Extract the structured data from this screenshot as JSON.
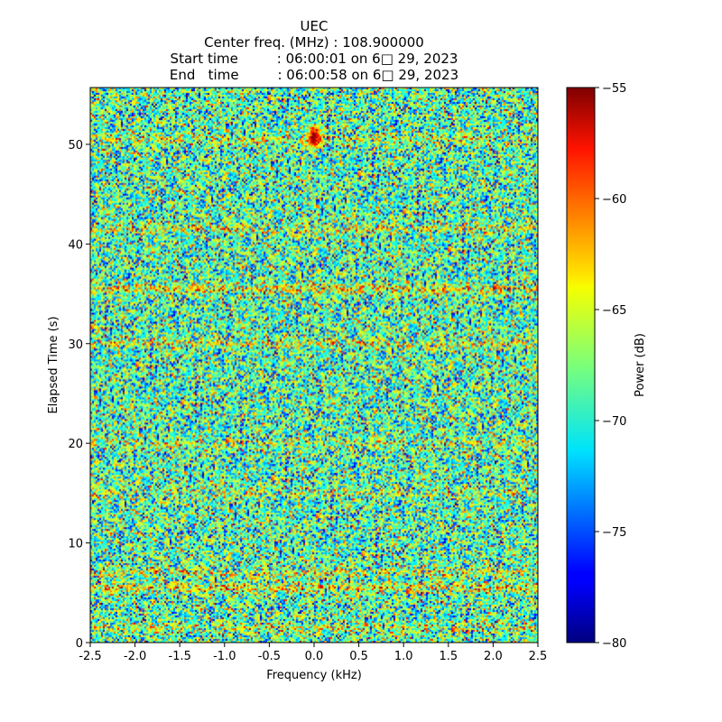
{
  "figure": {
    "title": "UEC",
    "subtitle_lines": [
      "Center freq. (MHz) : 108.900000",
      "Start time         : 06:00:01 on 6□ 29, 2023",
      "End   time         : 06:00:58 on 6□ 29, 2023"
    ]
  },
  "chart_data": {
    "type": "heatmap",
    "title": "UEC",
    "xlabel": "Frequency (kHz)",
    "ylabel": "Elapsed Time (s)",
    "xlim": [
      -2.5,
      2.5
    ],
    "ylim": [
      0,
      55.7
    ],
    "x_ticks": [
      -2.5,
      -2.0,
      -1.5,
      -1.0,
      -0.5,
      0.0,
      0.5,
      1.0,
      1.5,
      2.0,
      2.5
    ],
    "x_tick_labels": [
      "-2.5",
      "-2.0",
      "-1.5",
      "-1.0",
      "-0.5",
      "0.0",
      "0.5",
      "1.0",
      "1.5",
      "2.0",
      "2.5"
    ],
    "y_ticks": [
      0,
      10,
      20,
      30,
      40,
      50
    ],
    "y_tick_labels": [
      "0",
      "10",
      "20",
      "30",
      "40",
      "50"
    ],
    "colormap": "jet",
    "colorbar": {
      "label": "Power (dB)",
      "range": [
        -80,
        -55
      ],
      "ticks": [
        -80,
        -75,
        -70,
        -65,
        -60,
        -55
      ],
      "tick_labels": [
        "−80",
        "−75",
        "−70",
        "−65",
        "−60",
        "−55"
      ]
    },
    "background_level_db": -68.5,
    "noise_spread_db": 4.5,
    "features": [
      {
        "kind": "horizontal-band",
        "time_s": 1.5,
        "power_db": -64
      },
      {
        "kind": "horizontal-band",
        "time_s": 5.5,
        "power_db": -61
      },
      {
        "kind": "horizontal-band",
        "time_s": 7.0,
        "power_db": -63
      },
      {
        "kind": "horizontal-band",
        "time_s": 15.0,
        "power_db": -65
      },
      {
        "kind": "horizontal-band",
        "time_s": 20.0,
        "power_db": -65
      },
      {
        "kind": "horizontal-band",
        "time_s": 30.0,
        "power_db": -63
      },
      {
        "kind": "horizontal-band",
        "time_s": 35.5,
        "power_db": -61
      },
      {
        "kind": "horizontal-band",
        "time_s": 41.5,
        "power_db": -63
      },
      {
        "kind": "horizontal-band",
        "time_s": 50.5,
        "power_db": -64
      },
      {
        "kind": "carrier-burst",
        "freq_khz": 0.0,
        "time_range_s": [
          49.5,
          52.0
        ],
        "power_db": -55
      }
    ]
  }
}
